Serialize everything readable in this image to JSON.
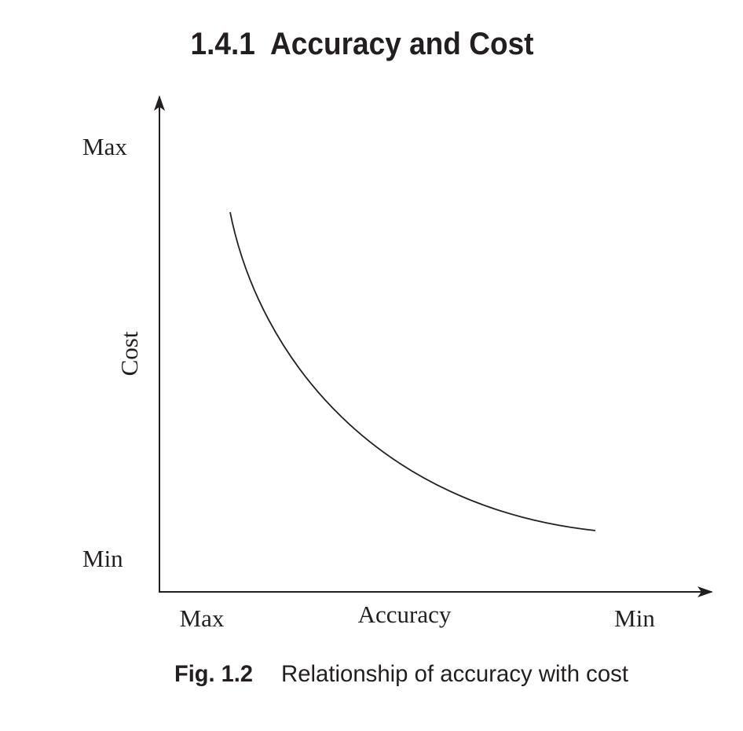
{
  "heading": "1.4.1  Accuracy and Cost",
  "figure": {
    "y_axis": {
      "title": "Cost",
      "top_label": "Max",
      "bottom_label": "Min"
    },
    "x_axis": {
      "title": "Accuracy",
      "left_label": "Max",
      "right_label": "Min"
    }
  },
  "caption": {
    "number": "Fig. 1.2",
    "text": "Relationship of accuracy with cost"
  }
}
